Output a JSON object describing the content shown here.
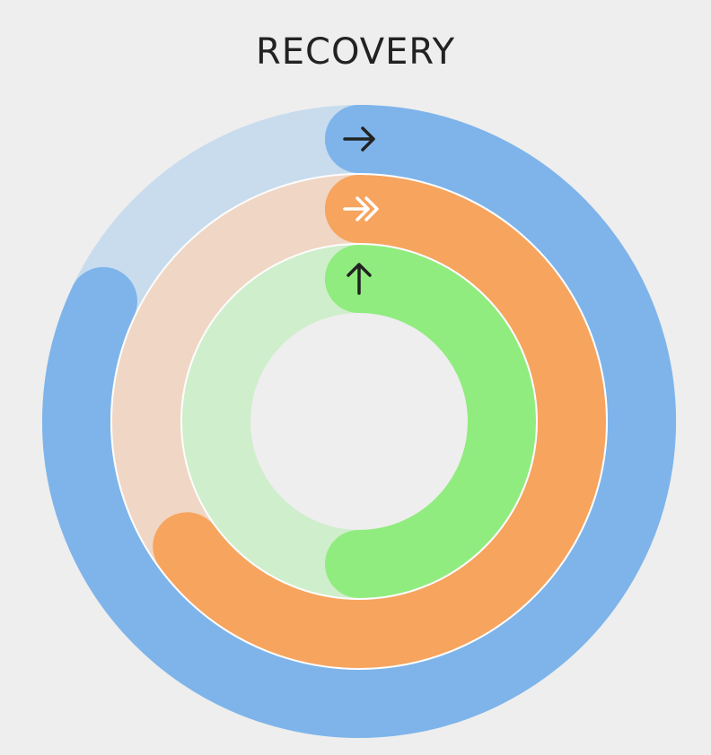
{
  "title": "RECOVERY",
  "background": "#EEEEEE",
  "rings": [
    {
      "key": "outer",
      "progress": 0.82,
      "color": "#7EB4EA",
      "track_color": "#C8DCEE",
      "icon": "arrow-right-icon",
      "icon_color": "#222222"
    },
    {
      "key": "middle",
      "progress": 0.65,
      "color": "#F6A45E",
      "track_color": "#F0D6C4",
      "icon": "double-chevron-right-icon",
      "icon_color": "#FFFFFF"
    },
    {
      "key": "inner",
      "progress": 0.5,
      "color": "#90EC7E",
      "track_color": "#CFEECB",
      "icon": "arrow-up-icon",
      "icon_color": "#222222"
    }
  ]
}
